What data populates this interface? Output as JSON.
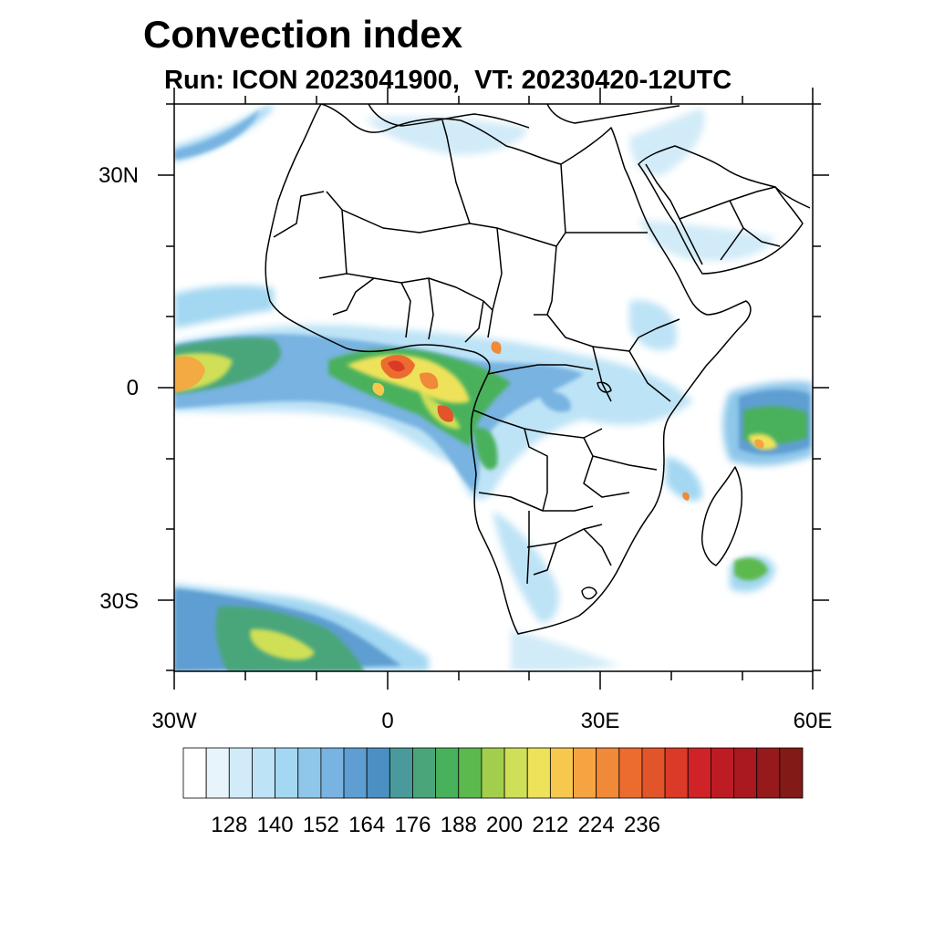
{
  "title": "Convection index",
  "subtitle": "Run: ICON 2023041900,  VT: 20230420-12UTC",
  "axes": {
    "lat_labels": [
      "30N",
      "0",
      "30S"
    ],
    "lon_labels": [
      "30W",
      "0",
      "30E",
      "60E"
    ]
  },
  "colorbar": {
    "tick_labels": [
      "128",
      "140",
      "152",
      "164",
      "176",
      "188",
      "200",
      "212",
      "224",
      "236"
    ],
    "colors": [
      "#ffffff",
      "#e8f4fb",
      "#d2ebf8",
      "#bde3f6",
      "#a3d7f2",
      "#8ec7ea",
      "#78b3e1",
      "#5e9ed2",
      "#4b8fc3",
      "#4a9a9b",
      "#4aa67a",
      "#48b15c",
      "#5cb94e",
      "#a3ce4d",
      "#cfdf57",
      "#eee25a",
      "#f7c84e",
      "#f6a441",
      "#f08938",
      "#ec6c2f",
      "#e25429",
      "#da3a27",
      "#cf2327",
      "#bd1c25",
      "#a9191f",
      "#961a1b",
      "#821a17"
    ]
  }
}
